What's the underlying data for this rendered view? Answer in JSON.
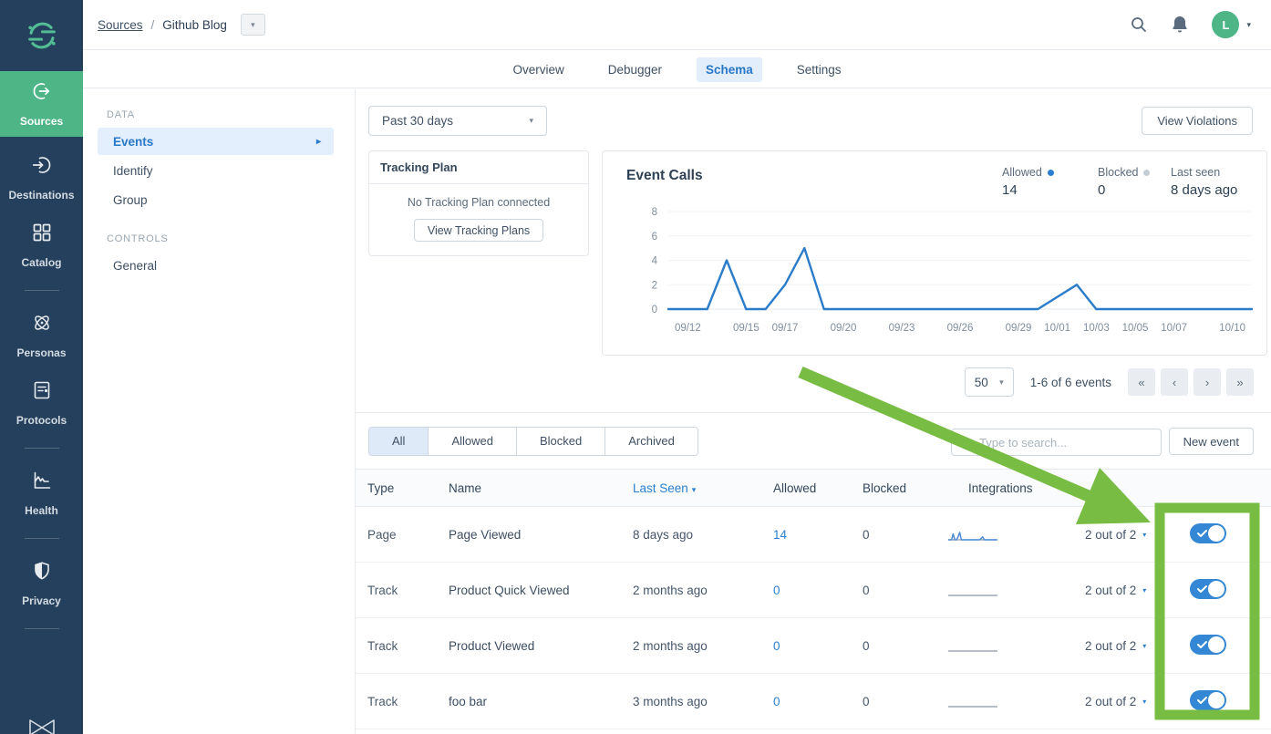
{
  "colors": {
    "annotation_green": "#78bc43",
    "sidebar_bg": "#25405c",
    "sidebar_active_bg": "#4db586",
    "logo_green": "#52bd95",
    "accent_blue": "#2a7fd1",
    "toggle_blue": "#3487d4",
    "chart_line": "#2b7cc9",
    "avatar_green": "#4db586"
  },
  "sidebar": {
    "items": [
      {
        "label": "Sources",
        "icon": "sources-icon",
        "active": true,
        "divider_after": false
      },
      {
        "label": "Destinations",
        "icon": "destinations-icon",
        "active": false,
        "divider_after": false
      },
      {
        "label": "Catalog",
        "icon": "catalog-icon",
        "active": false,
        "divider_after": true
      },
      {
        "label": "Personas",
        "icon": "personas-icon",
        "active": false,
        "divider_after": false
      },
      {
        "label": "Protocols",
        "icon": "protocols-icon",
        "active": false,
        "divider_after": true
      },
      {
        "label": "Health",
        "icon": "health-icon",
        "active": false,
        "divider_after": true
      },
      {
        "label": "Privacy",
        "icon": "privacy-icon",
        "active": false,
        "divider_after": true
      }
    ]
  },
  "topbar": {
    "breadcrumb_root": "Sources",
    "breadcrumb_separator": "/",
    "breadcrumb_current": "Github Blog",
    "avatar_initial": "L"
  },
  "tabs": [
    {
      "label": "Overview",
      "active": false
    },
    {
      "label": "Debugger",
      "active": false
    },
    {
      "label": "Schema",
      "active": true
    },
    {
      "label": "Settings",
      "active": false
    }
  ],
  "subnav": {
    "sections": [
      {
        "label": "DATA",
        "items": [
          {
            "label": "Events",
            "active": true,
            "has_caret": true
          },
          {
            "label": "Identify",
            "active": false,
            "has_caret": false
          },
          {
            "label": "Group",
            "active": false,
            "has_caret": false
          }
        ]
      },
      {
        "label": "CONTROLS",
        "items": [
          {
            "label": "General",
            "active": false,
            "has_caret": false
          }
        ]
      }
    ]
  },
  "toolbar": {
    "time_range": "Past 30 days",
    "view_violations_label": "View Violations"
  },
  "tracking_plan": {
    "title": "Tracking Plan",
    "empty_text": "No Tracking Plan connected",
    "button_label": "View Tracking Plans"
  },
  "event_calls": {
    "title": "Event Calls",
    "stats": [
      {
        "label": "Allowed",
        "value": "14",
        "dot_color": "#2a7fd1"
      },
      {
        "label": "Blocked",
        "value": "0",
        "dot_color": "#c4cdd6"
      },
      {
        "label": "Last seen",
        "value": "8 days ago",
        "dot_color": ""
      }
    ]
  },
  "chart_data": {
    "type": "line",
    "title": "Event Calls",
    "x": [
      "09/11",
      "09/12",
      "09/13",
      "09/14",
      "09/15",
      "09/16",
      "09/17",
      "09/18",
      "09/19",
      "09/20",
      "09/21",
      "09/22",
      "09/23",
      "09/24",
      "09/25",
      "09/26",
      "09/27",
      "09/28",
      "09/29",
      "09/30",
      "10/01",
      "10/02",
      "10/03",
      "10/04",
      "10/05",
      "10/06",
      "10/07",
      "10/08",
      "10/09",
      "10/10",
      "10/11"
    ],
    "series": [
      {
        "name": "Allowed",
        "values": [
          0,
          0,
          0,
          4,
          0,
          0,
          2,
          5,
          0,
          0,
          0,
          0,
          0,
          0,
          0,
          0,
          0,
          0,
          0,
          0,
          1,
          2,
          0,
          0,
          0,
          0,
          0,
          0,
          0,
          0,
          0
        ]
      }
    ],
    "legend": [
      {
        "label": "Allowed",
        "color": "#2a7fd1"
      },
      {
        "label": "Blocked",
        "color": "#c4cdd6"
      }
    ],
    "ylim": [
      0,
      8
    ],
    "yticks": [
      0,
      2,
      4,
      6,
      8
    ],
    "xtick_labels": [
      "09/12",
      "09/15",
      "09/17",
      "09/20",
      "09/23",
      "09/26",
      "09/29",
      "10/01",
      "10/03",
      "10/05",
      "10/07",
      "10/10"
    ],
    "grid": true,
    "legend_position": "top-right"
  },
  "pagination": {
    "page_size": "50",
    "range_text": "1-6 of 6 events",
    "buttons": [
      "«",
      "‹",
      "›",
      "»"
    ]
  },
  "events_table": {
    "filter_tabs": [
      {
        "label": "All",
        "active": true
      },
      {
        "label": "Allowed",
        "active": false
      },
      {
        "label": "Blocked",
        "active": false
      },
      {
        "label": "Archived",
        "active": false
      }
    ],
    "search_placeholder": "Type to search...",
    "new_event_label": "New event",
    "columns": [
      "Type",
      "Name",
      "Last Seen",
      "Allowed",
      "Blocked",
      "Integrations"
    ],
    "sort_column": "Last Seen",
    "rows": [
      {
        "type": "Page",
        "name": "Page Viewed",
        "last_seen": "8 days ago",
        "allowed": "14",
        "blocked": "0",
        "integrations": "2 out of 2",
        "enabled": true,
        "spark": [
          0,
          0,
          0,
          4,
          0,
          0,
          2,
          5,
          0,
          0,
          0,
          0,
          0,
          0,
          0,
          0,
          0,
          0,
          0,
          0,
          1,
          2,
          0,
          0,
          0,
          0,
          0,
          0,
          0,
          0,
          0
        ]
      },
      {
        "type": "Track",
        "name": "Product Quick Viewed",
        "last_seen": "2 months ago",
        "allowed": "0",
        "blocked": "0",
        "integrations": "2 out of 2",
        "enabled": true,
        "spark": [
          0
        ]
      },
      {
        "type": "Track",
        "name": "Product Viewed",
        "last_seen": "2 months ago",
        "allowed": "0",
        "blocked": "0",
        "integrations": "2 out of 2",
        "enabled": true,
        "spark": [
          0
        ]
      },
      {
        "type": "Track",
        "name": "foo bar",
        "last_seen": "3 months ago",
        "allowed": "0",
        "blocked": "0",
        "integrations": "2 out of 2",
        "enabled": true,
        "spark": [
          0
        ]
      }
    ]
  }
}
